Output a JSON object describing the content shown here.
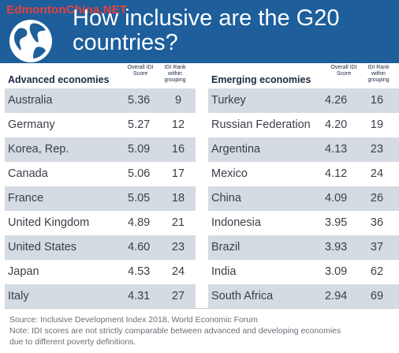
{
  "watermark": "EdmontonChina.NET",
  "title_line1": "How inclusive are the G20",
  "title_line2": "countries?",
  "columns": {
    "score": "Overall IDI Score",
    "rank": "IDI Rank within grouping"
  },
  "advanced": {
    "heading": "Advanced economies",
    "rows": [
      {
        "country": "Australia",
        "score": "5.36",
        "rank": "9"
      },
      {
        "country": "Germany",
        "score": "5.27",
        "rank": "12"
      },
      {
        "country": "Korea, Rep.",
        "score": "5.09",
        "rank": "16"
      },
      {
        "country": "Canada",
        "score": "5.06",
        "rank": "17"
      },
      {
        "country": "France",
        "score": "5.05",
        "rank": "18"
      },
      {
        "country": "United Kingdom",
        "score": "4.89",
        "rank": "21"
      },
      {
        "country": "United States",
        "score": "4.60",
        "rank": "23"
      },
      {
        "country": "Japan",
        "score": "4.53",
        "rank": "24"
      },
      {
        "country": "Italy",
        "score": "4.31",
        "rank": "27"
      }
    ]
  },
  "emerging": {
    "heading": "Emerging economies",
    "rows": [
      {
        "country": "Turkey",
        "score": "4.26",
        "rank": "16"
      },
      {
        "country": "Russian Federation",
        "score": "4.20",
        "rank": "19"
      },
      {
        "country": "Argentina",
        "score": "4.13",
        "rank": "23"
      },
      {
        "country": "Mexico",
        "score": "4.12",
        "rank": "24"
      },
      {
        "country": "China",
        "score": "4.09",
        "rank": "26"
      },
      {
        "country": "Indonesia",
        "score": "3.95",
        "rank": "36"
      },
      {
        "country": "Brazil",
        "score": "3.93",
        "rank": "37"
      },
      {
        "country": "India",
        "score": "3.09",
        "rank": "62"
      },
      {
        "country": "South Africa",
        "score": "2.94",
        "rank": "69"
      }
    ]
  },
  "source": "Source: Inclusive Development Index 2018, World Economic Forum",
  "note_line1": "Note: IDI scores are not strictly comparable between advanced and developing economies",
  "note_line2": "due to different poverty definitions.",
  "colors": {
    "header": "#1d5e9b",
    "row_shade": "#d5dbe2",
    "watermark": "#e8413a"
  },
  "icons": {
    "globe": "globe-icon"
  }
}
